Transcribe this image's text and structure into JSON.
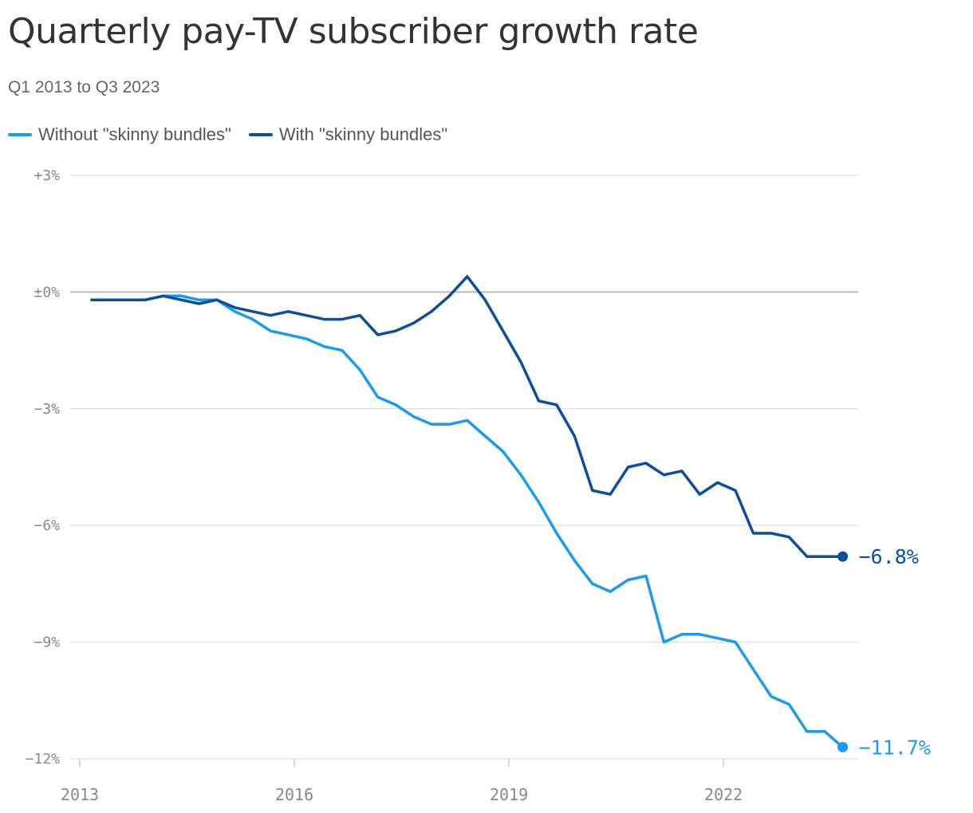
{
  "chart_data": {
    "type": "line",
    "title": "Quarterly pay-TV subscriber growth rate",
    "subtitle": "Q1 2013 to Q3 2023",
    "xlabel": "",
    "ylabel": "",
    "ylim": [
      -12,
      3
    ],
    "y_ticks": [
      {
        "value": 3,
        "label": "+3%"
      },
      {
        "value": 0,
        "label": "±0%"
      },
      {
        "value": -3,
        "label": "−3%"
      },
      {
        "value": -6,
        "label": "−6%"
      },
      {
        "value": -9,
        "label": "−9%"
      },
      {
        "value": -12,
        "label": "−12%"
      }
    ],
    "x_ticks": [
      {
        "value": 2013,
        "label": "2013"
      },
      {
        "value": 2016,
        "label": "2016"
      },
      {
        "value": 2019,
        "label": "2019"
      },
      {
        "value": 2022,
        "label": "2022"
      }
    ],
    "x_start": "2013 Q1",
    "legend_position": "top-left",
    "grid": true,
    "series": [
      {
        "name": "Without \"skinny bundles\"",
        "color": "#1a9bf0",
        "end_label": "−11.7%",
        "values": [
          -0.2,
          -0.2,
          -0.2,
          -0.2,
          -0.1,
          -0.1,
          -0.2,
          -0.2,
          -0.5,
          -0.7,
          -1.0,
          -1.1,
          -1.2,
          -1.4,
          -1.5,
          -2.0,
          -2.7,
          -2.9,
          -3.2,
          -3.4,
          -3.4,
          -3.3,
          -3.7,
          -4.1,
          -4.7,
          -5.4,
          -6.2,
          -6.9,
          -7.5,
          -7.7,
          -7.4,
          -7.3,
          -9.0,
          -8.8,
          -8.8,
          -8.9,
          -9.0,
          -9.7,
          -10.4,
          -10.6,
          -11.3,
          -11.3,
          -11.7
        ]
      },
      {
        "name": "With \"skinny bundles\"",
        "color": "#0a4f9e",
        "end_label": "−6.8%",
        "values": [
          -0.2,
          -0.2,
          -0.2,
          -0.2,
          -0.1,
          -0.2,
          -0.3,
          -0.2,
          -0.4,
          -0.5,
          -0.6,
          -0.5,
          -0.6,
          -0.7,
          -0.7,
          -0.6,
          -1.1,
          -1.0,
          -0.8,
          -0.5,
          -0.1,
          0.4,
          -0.2,
          -1.0,
          -1.8,
          -2.8,
          -2.9,
          -3.7,
          -5.1,
          -5.2,
          -4.5,
          -4.4,
          -4.7,
          -4.6,
          -5.2,
          -4.9,
          -5.1,
          -6.2,
          -6.2,
          -6.3,
          -6.8,
          -6.8,
          -6.8
        ]
      }
    ]
  }
}
